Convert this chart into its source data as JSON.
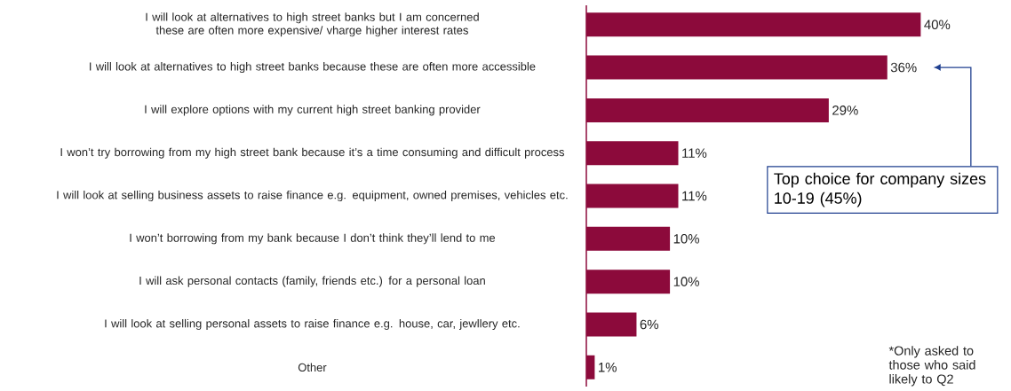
{
  "chart_data": {
    "type": "bar",
    "orientation": "horizontal",
    "categories": [
      "I will look at alternatives to high street banks but I am concerned these are often more expensive/ vharge higher interest rates",
      "I will look at alternatives to high street banks because these are often more accessible",
      "I will explore options with my current high street banking provider",
      "I won’t try borrowing from my high street bank because it’s a time consuming and difficult process",
      "I will look at selling business assets to raise finance e.g. equipment, owned premises, vehicles etc.",
      "I won’t borrowing from my bank because I don’t think they’ll lend to me",
      "I will ask personal contacts (family, friends etc.) for a personal loan",
      "I will look at selling personal assets to raise finance e.g. house, car, jewllery etc.",
      "Other"
    ],
    "values": [
      40,
      36,
      29,
      11,
      11,
      10,
      10,
      6,
      1
    ],
    "value_labels": [
      "40%",
      "36%",
      "29%",
      "11%",
      "11%",
      "10%",
      "10%",
      "6%",
      "1%"
    ],
    "color": "#8c0a3b",
    "annotations": [
      "Top choice for company sizes 10-19 (45%)",
      "*Only asked to those who said likely to Q2"
    ]
  }
}
